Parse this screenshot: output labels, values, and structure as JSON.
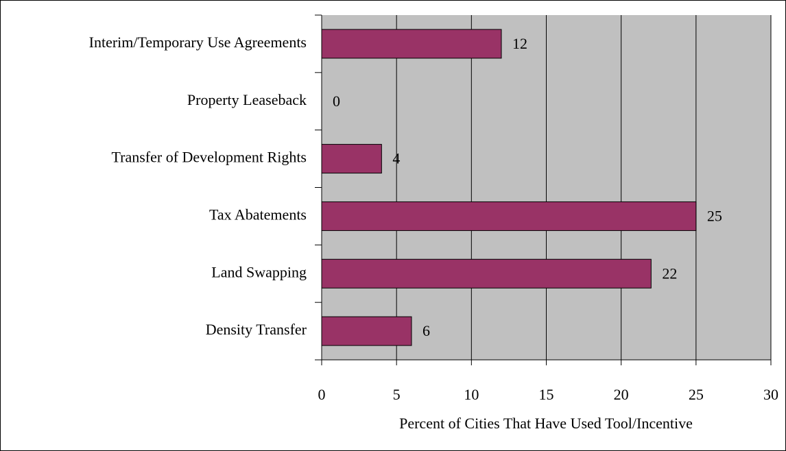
{
  "chart_data": {
    "type": "bar",
    "orientation": "horizontal",
    "categories": [
      "Interim/Temporary Use Agreements",
      "Property Leaseback",
      "Transfer of Development Rights",
      "Tax Abatements",
      "Land Swapping",
      "Density Transfer"
    ],
    "values": [
      12,
      0,
      4,
      25,
      22,
      6
    ],
    "color": "#993366",
    "xlabel": "Percent of Cities That Have Used Tool/Incentive",
    "xlim": [
      0,
      30
    ],
    "xticks": [
      0,
      5,
      10,
      15,
      20,
      25,
      30
    ],
    "grid": true
  }
}
